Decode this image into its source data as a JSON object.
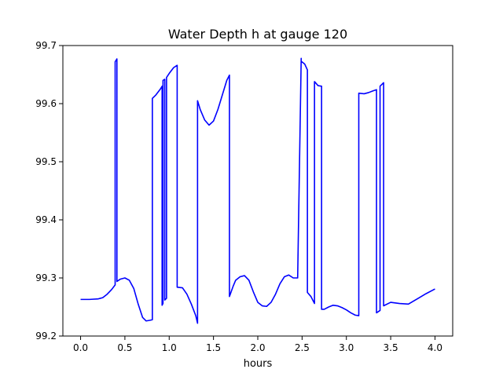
{
  "chart_data": {
    "type": "line",
    "title": "Water Depth h at gauge 120",
    "xlabel": "hours",
    "ylabel": "",
    "xlim": [
      -0.2,
      4.2
    ],
    "ylim": [
      99.2,
      99.7
    ],
    "xticks": [
      0.0,
      0.5,
      1.0,
      1.5,
      2.0,
      2.5,
      3.0,
      3.5,
      4.0
    ],
    "xtick_labels": [
      "0.0",
      "0.5",
      "1.0",
      "1.5",
      "2.0",
      "2.5",
      "3.0",
      "3.5",
      "4.0"
    ],
    "yticks": [
      99.2,
      99.3,
      99.4,
      99.5,
      99.6,
      99.7
    ],
    "ytick_labels": [
      "99.2",
      "99.3",
      "99.4",
      "99.5",
      "99.6",
      "99.7"
    ],
    "grid": false,
    "series": [
      {
        "color": "#0000ff",
        "x": [
          0.0,
          0.1,
          0.2,
          0.25,
          0.3,
          0.35,
          0.39,
          0.39,
          0.41,
          0.41,
          0.45,
          0.5,
          0.55,
          0.6,
          0.65,
          0.7,
          0.74,
          0.78,
          0.81,
          0.81,
          0.85,
          0.9,
          0.92,
          0.92,
          0.93,
          0.93,
          0.95,
          0.95,
          0.97,
          0.97,
          1.0,
          1.05,
          1.09,
          1.09,
          1.15,
          1.2,
          1.25,
          1.3,
          1.32,
          1.32,
          1.35,
          1.4,
          1.45,
          1.5,
          1.55,
          1.6,
          1.65,
          1.68,
          1.68,
          1.72,
          1.75,
          1.8,
          1.85,
          1.9,
          1.95,
          2.0,
          2.05,
          2.1,
          2.15,
          2.2,
          2.25,
          2.3,
          2.35,
          2.4,
          2.45,
          2.49,
          2.49,
          2.53,
          2.56,
          2.56,
          2.6,
          2.64,
          2.64,
          2.68,
          2.72,
          2.72,
          2.75,
          2.8,
          2.85,
          2.9,
          2.95,
          3.0,
          3.05,
          3.1,
          3.14,
          3.14,
          3.2,
          3.25,
          3.3,
          3.34,
          3.34,
          3.38,
          3.38,
          3.42,
          3.42,
          3.5,
          3.6,
          3.7,
          3.8,
          3.9,
          4.0
        ],
        "y": [
          99.263,
          99.263,
          99.264,
          99.266,
          99.272,
          99.28,
          99.288,
          99.672,
          99.677,
          99.294,
          99.298,
          99.3,
          99.296,
          99.282,
          99.255,
          99.232,
          99.226,
          99.227,
          99.228,
          99.609,
          99.615,
          99.625,
          99.63,
          99.253,
          99.256,
          99.64,
          99.642,
          99.262,
          99.265,
          99.645,
          99.652,
          99.662,
          99.666,
          99.284,
          99.283,
          99.272,
          99.255,
          99.235,
          99.222,
          99.605,
          99.59,
          99.572,
          99.563,
          99.57,
          99.59,
          99.615,
          99.64,
          99.649,
          99.268,
          99.285,
          99.296,
          99.302,
          99.304,
          99.296,
          99.276,
          99.258,
          99.252,
          99.251,
          99.258,
          99.272,
          99.29,
          99.302,
          99.305,
          99.3,
          99.3,
          99.678,
          99.673,
          99.668,
          99.658,
          99.275,
          99.268,
          99.256,
          99.638,
          99.631,
          99.63,
          99.246,
          99.246,
          99.25,
          99.253,
          99.252,
          99.249,
          99.245,
          99.24,
          99.236,
          99.235,
          99.618,
          99.617,
          99.619,
          99.622,
          99.624,
          99.24,
          99.244,
          99.63,
          99.636,
          99.252,
          99.258,
          99.256,
          99.255,
          99.264,
          99.273,
          99.281
        ]
      }
    ]
  }
}
